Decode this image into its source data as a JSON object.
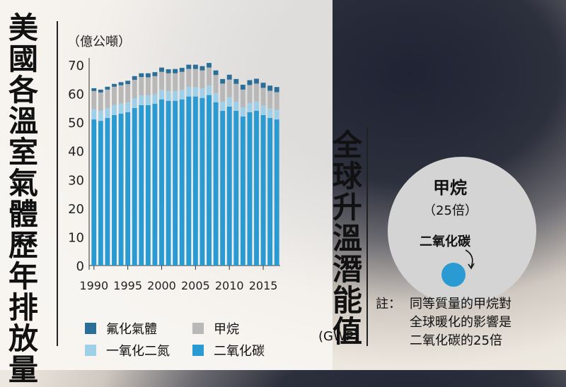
{
  "left_title": "美國各溫室氣體歷年排放量",
  "right_title": "全球升溫潛能值",
  "right_title_sub": "(GWP)",
  "unit": "（億公噸）",
  "legend": {
    "fluorinated": "氟化氣體",
    "methane": "甲烷",
    "n2o": "一氧化二氮",
    "co2": "二氧化碳"
  },
  "colors": {
    "co2": "#2a9ad2",
    "n2o": "#9fd0ea",
    "methane": "#b8b8b8",
    "fluorinated": "#2b6f98"
  },
  "gwp": {
    "methane_label": "甲烷",
    "methane_value": "（25倍）",
    "co2_label": "二氧化碳",
    "note_prefix": "註：",
    "note_lines": [
      "同等質量的甲烷對",
      "全球暖化的影響是",
      "二氧化碳的25倍"
    ]
  },
  "chart_data": {
    "type": "bar",
    "stacked": true,
    "years": [
      1990,
      1991,
      1992,
      1993,
      1994,
      1995,
      1996,
      1997,
      1998,
      1999,
      2000,
      2001,
      2002,
      2003,
      2004,
      2005,
      2006,
      2007,
      2008,
      2009,
      2010,
      2011,
      2012,
      2013,
      2014,
      2015,
      2016,
      2017
    ],
    "x_tick_labels": [
      "1990",
      "1995",
      "2000",
      "2005",
      "2010",
      "2015"
    ],
    "ylim": [
      0,
      70
    ],
    "y_ticks": [
      0,
      10,
      20,
      30,
      40,
      50,
      60,
      70
    ],
    "series": [
      {
        "key": "co2",
        "values": [
          51,
          50.5,
          51.5,
          52.5,
          53,
          53.5,
          55,
          56,
          56,
          56.5,
          58,
          57.5,
          57.5,
          58,
          59,
          59,
          58.5,
          59.5,
          57,
          54,
          55.5,
          54,
          52,
          53.5,
          54,
          52.5,
          51.5,
          51
        ]
      },
      {
        "key": "n2o",
        "values": [
          3.5,
          3.5,
          3.5,
          3.5,
          3.5,
          3.4,
          3.4,
          3.4,
          3.4,
          3.3,
          3.3,
          3.3,
          3.3,
          3.3,
          3.3,
          3.3,
          3.3,
          3.3,
          3.2,
          3.2,
          3.2,
          3.2,
          3.2,
          3.3,
          3.3,
          3.3,
          3.3,
          3.3
        ]
      },
      {
        "key": "methane",
        "values": [
          6.4,
          6.4,
          6.4,
          6.4,
          6.4,
          6.4,
          6.4,
          6.4,
          6.3,
          6.3,
          6.3,
          6.3,
          6.3,
          6.3,
          6.3,
          6.3,
          6.3,
          6.3,
          6.3,
          6.3,
          6.2,
          6.2,
          6.2,
          6.2,
          6.2,
          6.2,
          6.2,
          6.2
        ]
      },
      {
        "key": "fluorinated",
        "values": [
          1.0,
          1.0,
          1.0,
          1.0,
          1.1,
          1.2,
          1.3,
          1.3,
          1.4,
          1.4,
          1.5,
          1.4,
          1.5,
          1.4,
          1.5,
          1.5,
          1.5,
          1.6,
          1.6,
          1.6,
          1.7,
          1.7,
          1.7,
          1.7,
          1.7,
          1.8,
          1.8,
          1.8
        ]
      }
    ]
  }
}
